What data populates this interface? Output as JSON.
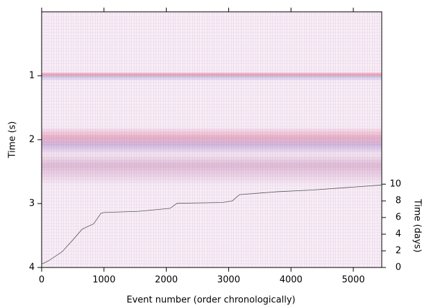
{
  "chart_data": {
    "type": "image",
    "x_label": "Event number (order chronologically)",
    "y_label": "Time (s)",
    "y2_label": "Time (days)",
    "xlim": [
      0,
      5456
    ],
    "xticks": [
      0,
      1000,
      2000,
      3000,
      4000,
      5000
    ],
    "ylim": [
      4,
      0
    ],
    "yticks": [
      1,
      2,
      3,
      4
    ],
    "y2lim": [
      0,
      30.7
    ],
    "y2ticks": [
      0,
      2,
      4,
      6,
      8,
      10
    ],
    "x": [
      0,
      110,
      330,
      500,
      650,
      835,
      950,
      1000,
      1560,
      2060,
      2170,
      2900,
      3060,
      3175,
      3785,
      4345,
      4900,
      5456
    ],
    "series": [
      {
        "color": "#555555",
        "axis": "y2",
        "values": [
          0.4,
          0.8,
          1.9,
          3.3,
          4.6,
          5.25,
          6.5,
          6.6,
          6.75,
          7.1,
          7.7,
          7.8,
          8.0,
          8.75,
          9.1,
          9.3,
          9.6,
          9.9
        ]
      }
    ]
  }
}
